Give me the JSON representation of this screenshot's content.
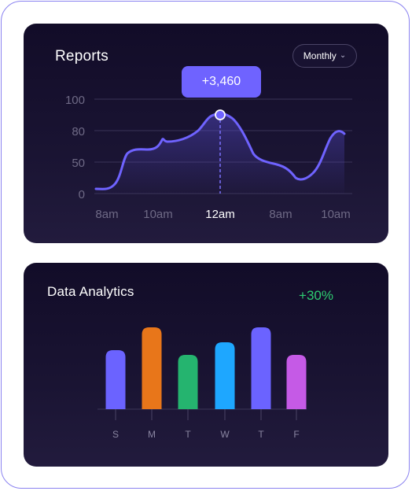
{
  "reports": {
    "title": "Reports",
    "period_select": "Monthly",
    "tooltip": "+3,460",
    "chart_data": {
      "type": "area",
      "y_ticks": [
        100,
        80,
        50,
        0
      ],
      "x_labels": [
        "8am",
        "10am",
        "12am",
        "8am",
        "10am"
      ],
      "highlighted_x_label": "12am",
      "highlighted_value": 3460,
      "colors": {
        "line": "#6f63ff",
        "fill_top": "#4a3fb0",
        "grid": "#3a3458",
        "label": "#6f6a86"
      }
    }
  },
  "analytics": {
    "title": "Data Analytics",
    "growth": "+30%",
    "chart_data": {
      "type": "bar",
      "categories": [
        "S",
        "M",
        "T",
        "W",
        "T",
        "F"
      ],
      "values": [
        75,
        104,
        69,
        85,
        104,
        69
      ],
      "colors": [
        "#6b63ff",
        "#e8761a",
        "#25b46f",
        "#1ea7ff",
        "#6b63ff",
        "#c55ae6"
      ]
    }
  }
}
